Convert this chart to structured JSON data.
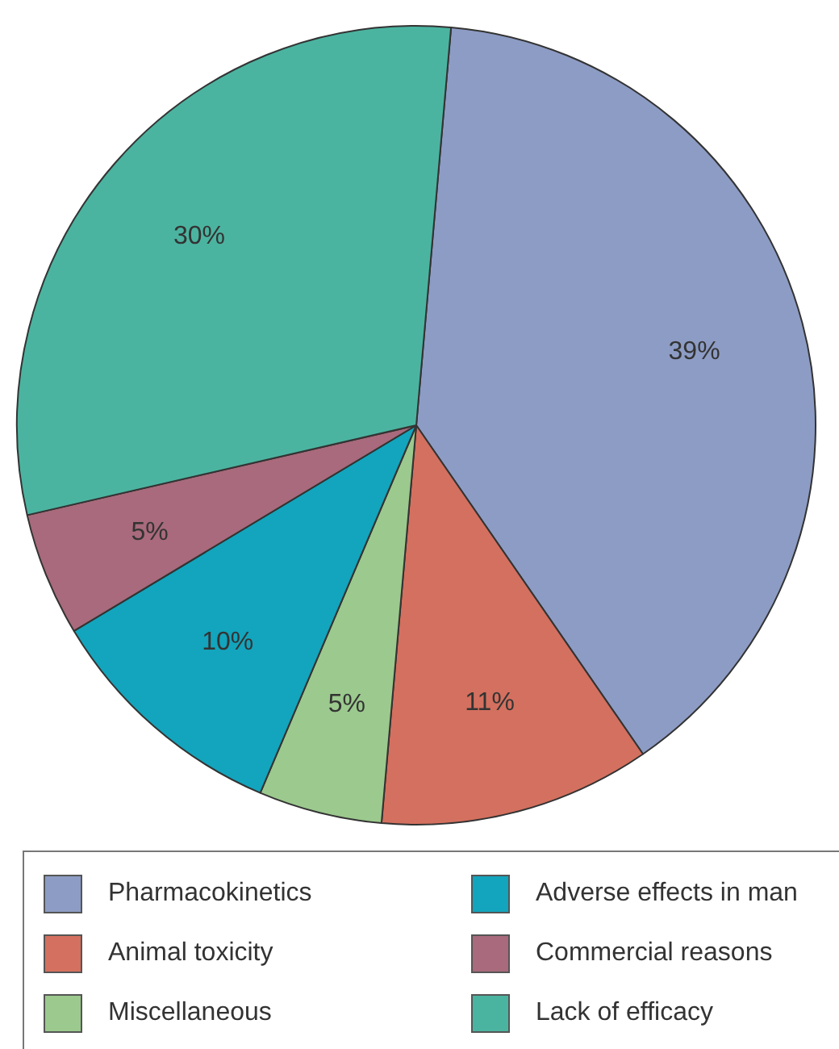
{
  "chart_data": {
    "type": "pie",
    "categories": [
      "Pharmacokinetics",
      "Animal toxicity",
      "Miscellaneous",
      "Adverse effects in man",
      "Commercial reasons",
      "Lack of efficacy"
    ],
    "values": [
      39,
      11,
      5,
      10,
      5,
      30
    ],
    "value_labels": [
      "39%",
      "11%",
      "5%",
      "10%",
      "5%",
      "30%"
    ],
    "colors": [
      "#8d9cc4",
      "#d4705f",
      "#9cc98e",
      "#12a5bd",
      "#a86a7c",
      "#4bb4a0"
    ],
    "legend": "bottom"
  }
}
